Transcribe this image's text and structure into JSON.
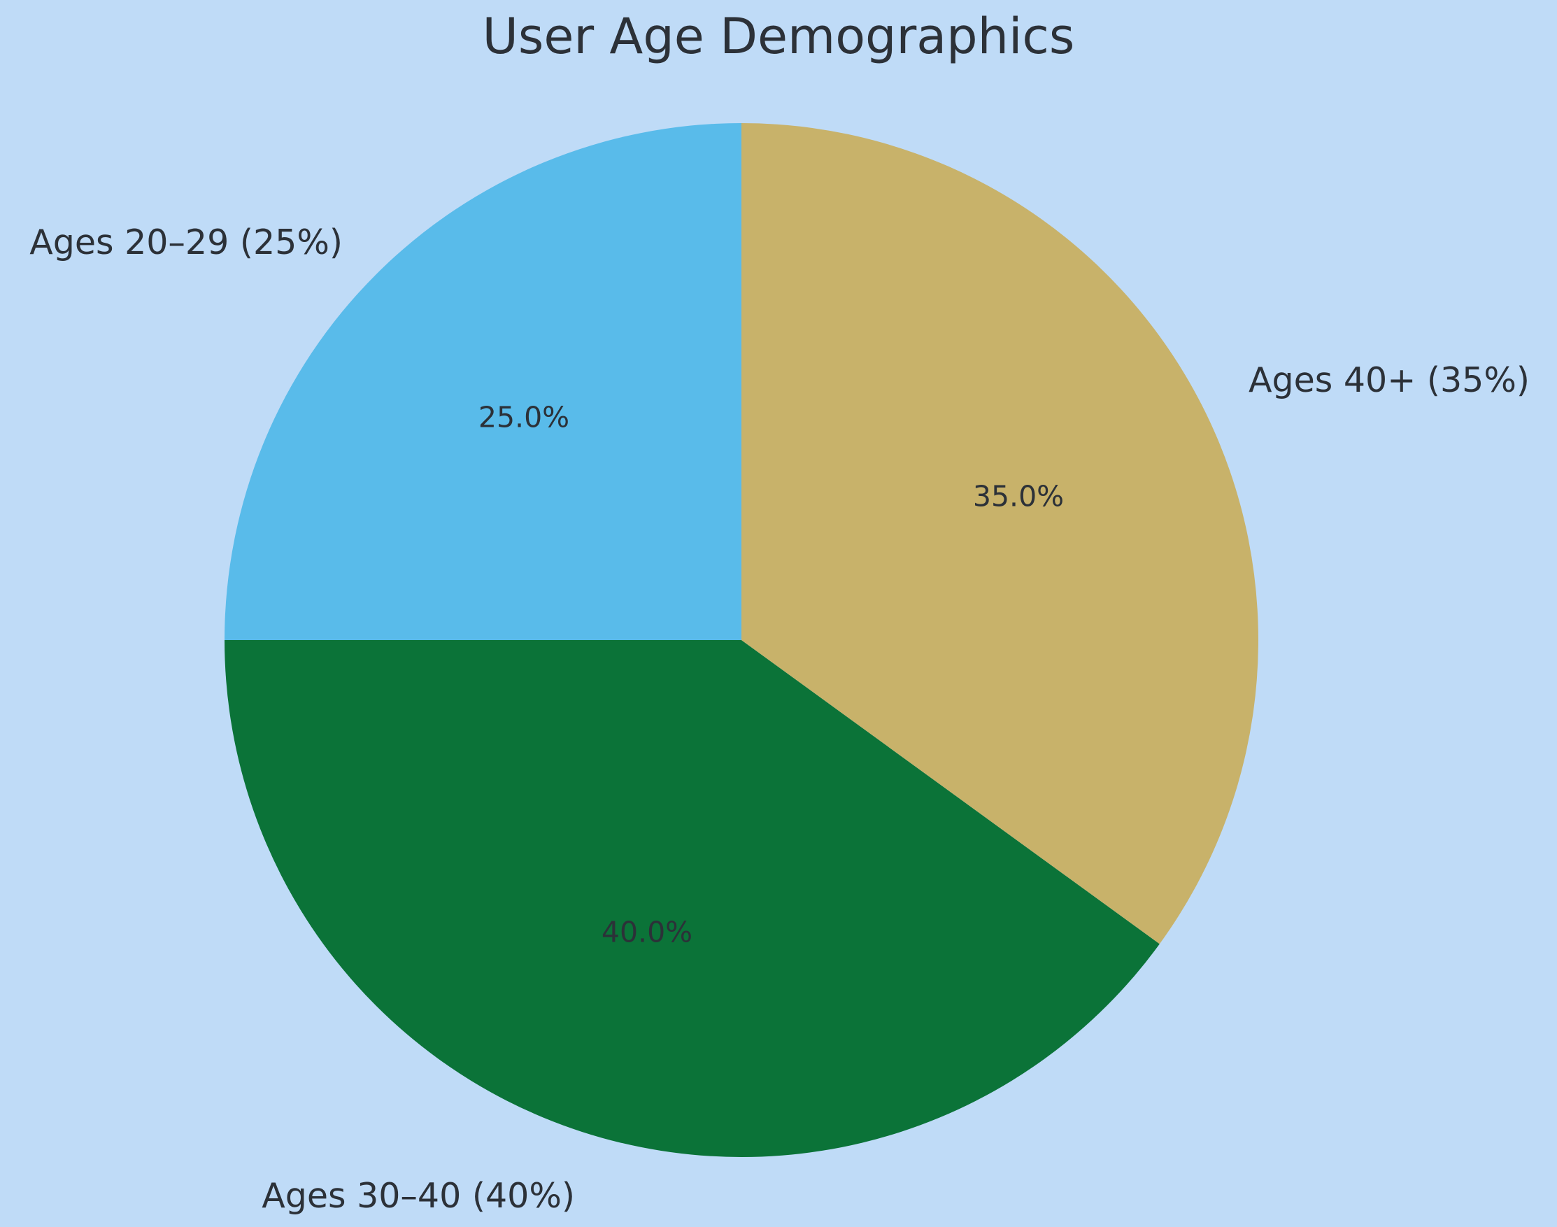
{
  "chart_data": {
    "type": "pie",
    "title": "User Age Demographics",
    "categories": [
      "Ages 20–29",
      "Ages 30–40",
      "Ages 40+"
    ],
    "values": [
      25.0,
      40.0,
      35.0
    ],
    "start_angle_deg": 90,
    "direction": "counterclockwise",
    "background_color": "#bfdbf7",
    "text_color": "#2c3138",
    "slices": [
      {
        "label": "Ages 20–29 (25%)",
        "pct_label": "25.0%",
        "value": 25.0,
        "color": "#59bbea"
      },
      {
        "label": "Ages 30–40 (40%)",
        "pct_label": "40.0%",
        "value": 40.0,
        "color": "#0b7338"
      },
      {
        "label": "Ages 40+ (35%)",
        "pct_label": "35.0%",
        "value": 35.0,
        "color": "#c8b26a"
      }
    ]
  }
}
